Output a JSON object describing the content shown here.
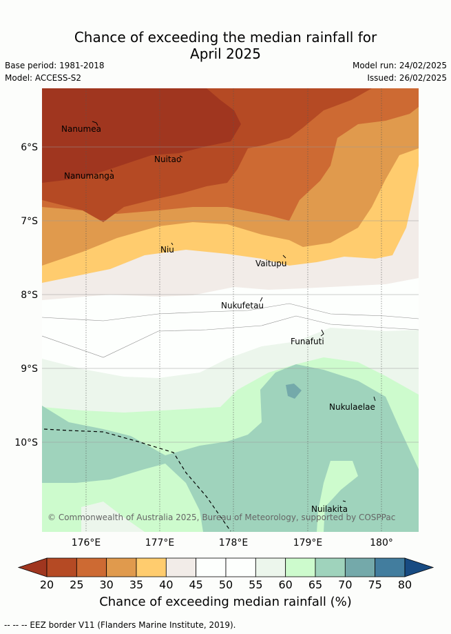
{
  "title_line1": "Chance of exceeding the median rainfall for",
  "title_line2": "April 2025",
  "base_period": "Base period: 1981-2018",
  "model": "Model: ACCESS-S2",
  "model_run": "Model run: 24/02/2025",
  "issued": "Issued: 26/02/2025",
  "lat_ticks": [
    "6°S",
    "7°S",
    "8°S",
    "9°S",
    "10°S"
  ],
  "lon_ticks": [
    "176°E",
    "177°E",
    "178°E",
    "179°E",
    "180°"
  ],
  "places": {
    "nanumea": "Nanumea",
    "nuitao": "Nuitao",
    "nanumanga": "Nanumanga",
    "niu": "Niu",
    "vaitupu": "Vaitupu",
    "nukufetau": "Nukufetau",
    "funafuti": "Funafuti",
    "nukulaelae": "Nukulaelae",
    "nuilakita": "Nuilakita"
  },
  "copyright": "© Commonwealth of Australia 2025, Bureau of Meteorology, supported by COSPPac",
  "colorbar": {
    "labels": [
      "20",
      "25",
      "30",
      "35",
      "40",
      "45",
      "50",
      "55",
      "60",
      "65",
      "70",
      "75",
      "80"
    ],
    "title": "Chance of exceeding median rainfall (%)",
    "colors": [
      "#a0361f",
      "#b54a24",
      "#cd6a33",
      "#e09a4d",
      "#ffcc6e",
      "#f2ece8",
      "#fdfffd",
      "#fdfffd",
      "#ecf6ec",
      "#cdfbcd",
      "#9fd3bc",
      "#74a9aa",
      "#427d9e",
      "#184b82"
    ]
  },
  "footer": "--  --  -- EEZ border V11 (Flanders Marine Institute, 2019)."
}
